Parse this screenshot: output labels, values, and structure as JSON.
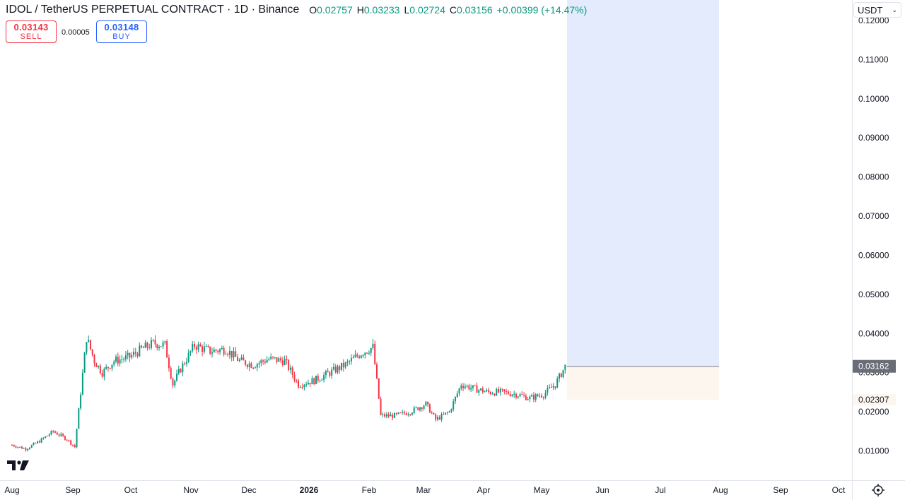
{
  "header": {
    "title": "IDOL / TetherUS PERPETUAL CONTRACT · 1D · Binance",
    "ohlc": [
      {
        "key": "O",
        "value": "0.02757"
      },
      {
        "key": "H",
        "value": "0.03233"
      },
      {
        "key": "L",
        "value": "0.02724"
      },
      {
        "key": "C",
        "value": "0.03156"
      }
    ],
    "change": "+0.00399 (+14.47%)"
  },
  "trade": {
    "sell_price": "0.03143",
    "sell_label": "SELL",
    "spread": "0.00005",
    "buy_price": "0.03148",
    "buy_label": "BUY"
  },
  "currency": {
    "label": "USDT"
  },
  "icons": {
    "logo": "tradingview-logo-icon",
    "goto": "goto-realtime-icon",
    "dropdown": "chevron-down-icon"
  },
  "colors": {
    "up": "#089981",
    "down": "#f23645",
    "target_zone": "#e3ebfd",
    "stop_zone": "#fdf6ef",
    "price_tag": "#6a6d78"
  },
  "chart_data": {
    "type": "candlestick",
    "title": "IDOL / TetherUS PERPETUAL CONTRACT",
    "interval": "1D",
    "ylim": [
      0.0,
      0.1225
    ],
    "y_ticks": [
      "0.01000",
      "0.02000",
      "0.03000",
      "0.04000",
      "0.05000",
      "0.06000",
      "0.07000",
      "0.08000",
      "0.09000",
      "0.10000",
      "0.11000",
      "0.12000"
    ],
    "x_ticks": [
      "Aug",
      "Sep",
      "Oct",
      "Nov",
      "Dec",
      "2026",
      "Feb",
      "Mar",
      "Apr",
      "May",
      "Jun",
      "Jul",
      "Aug",
      "Sep",
      "Oct"
    ],
    "x_range_months": [
      "2025-08",
      "2026-10"
    ],
    "price_close_series": [
      [
        "2025-08-01",
        0.0115
      ],
      [
        "2025-08-08",
        0.0105
      ],
      [
        "2025-08-15",
        0.0125
      ],
      [
        "2025-08-22",
        0.015
      ],
      [
        "2025-08-29",
        0.013
      ],
      [
        "2025-09-02",
        0.011
      ],
      [
        "2025-09-05",
        0.025
      ],
      [
        "2025-09-08",
        0.039
      ],
      [
        "2025-09-12",
        0.033
      ],
      [
        "2025-09-16",
        0.03
      ],
      [
        "2025-09-22",
        0.033
      ],
      [
        "2025-09-30",
        0.034
      ],
      [
        "2025-10-06",
        0.036
      ],
      [
        "2025-10-12",
        0.0375
      ],
      [
        "2025-10-18",
        0.037
      ],
      [
        "2025-10-22",
        0.027
      ],
      [
        "2025-10-26",
        0.031
      ],
      [
        "2025-11-02",
        0.037
      ],
      [
        "2025-11-10",
        0.0355
      ],
      [
        "2025-11-18",
        0.036
      ],
      [
        "2025-11-25",
        0.033
      ],
      [
        "2025-12-02",
        0.032
      ],
      [
        "2025-12-10",
        0.0335
      ],
      [
        "2025-12-18",
        0.033
      ],
      [
        "2025-12-25",
        0.027
      ],
      [
        "2026-01-02",
        0.028
      ],
      [
        "2026-01-10",
        0.03
      ],
      [
        "2026-01-18",
        0.032
      ],
      [
        "2026-01-26",
        0.035
      ],
      [
        "2026-02-01",
        0.0365
      ],
      [
        "2026-02-05",
        0.019
      ],
      [
        "2026-02-12",
        0.019
      ],
      [
        "2026-02-20",
        0.02
      ],
      [
        "2026-02-28",
        0.022
      ],
      [
        "2026-03-05",
        0.018
      ],
      [
        "2026-03-12",
        0.02
      ],
      [
        "2026-03-18",
        0.027
      ],
      [
        "2026-03-24",
        0.026
      ],
      [
        "2026-04-01",
        0.025
      ],
      [
        "2026-04-08",
        0.025
      ],
      [
        "2026-04-15",
        0.0245
      ],
      [
        "2026-04-22",
        0.0235
      ],
      [
        "2026-04-29",
        0.0245
      ],
      [
        "2026-05-05",
        0.027
      ],
      [
        "2026-05-10",
        0.0316
      ]
    ],
    "last_price": "0.03162",
    "stop_price": "0.02307",
    "position_tool": {
      "entry": 0.03162,
      "target": 0.1225,
      "stop": 0.02307,
      "start": "2026-05-11",
      "end": "2026-08-01"
    }
  }
}
